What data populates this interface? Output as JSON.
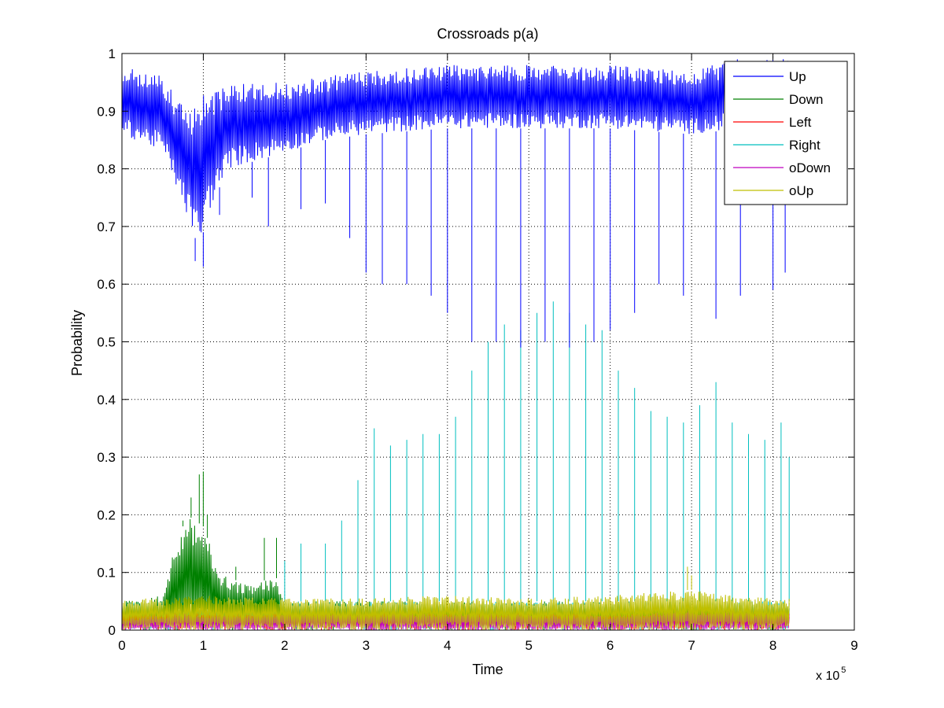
{
  "chart_data": {
    "type": "line",
    "title": "Crossroads p(a)",
    "xlabel": "Time",
    "ylabel": "Probability",
    "x_multiplier_label": "x 10",
    "x_multiplier_exponent": "5",
    "xlim": [
      0,
      9
    ],
    "ylim": [
      0,
      1
    ],
    "xticks": [
      "0",
      "1",
      "2",
      "3",
      "4",
      "5",
      "6",
      "7",
      "8",
      "9"
    ],
    "yticks": [
      "0",
      "0.1",
      "0.2",
      "0.3",
      "0.4",
      "0.5",
      "0.6",
      "0.7",
      "0.8",
      "0.9",
      "1"
    ],
    "grid": true,
    "legend_position": "top-right",
    "x_end": 8.2,
    "series": [
      {
        "name": "Up",
        "color": "#0000ff",
        "band_top": [
          [
            0.0,
            0.98
          ],
          [
            0.5,
            0.96
          ],
          [
            0.8,
            0.9
          ],
          [
            1.0,
            0.93
          ],
          [
            1.5,
            0.95
          ],
          [
            2.0,
            0.95
          ],
          [
            3.0,
            0.97
          ],
          [
            4.0,
            0.98
          ],
          [
            5.0,
            0.98
          ],
          [
            6.0,
            0.98
          ],
          [
            7.0,
            0.97
          ],
          [
            7.5,
            0.99
          ],
          [
            8.2,
            0.99
          ]
        ],
        "band_bottom": [
          [
            0.0,
            0.86
          ],
          [
            0.5,
            0.83
          ],
          [
            0.8,
            0.72
          ],
          [
            0.95,
            0.66
          ],
          [
            1.05,
            0.72
          ],
          [
            1.3,
            0.8
          ],
          [
            1.8,
            0.82
          ],
          [
            2.5,
            0.85
          ],
          [
            3.0,
            0.86
          ],
          [
            4.0,
            0.87
          ],
          [
            5.0,
            0.87
          ],
          [
            6.0,
            0.87
          ],
          [
            7.0,
            0.86
          ],
          [
            8.2,
            0.88
          ]
        ],
        "spikes": [
          [
            0.9,
            0.64
          ],
          [
            1.0,
            0.63
          ],
          [
            1.2,
            0.72
          ],
          [
            1.6,
            0.75
          ],
          [
            1.8,
            0.7
          ],
          [
            2.2,
            0.73
          ],
          [
            2.5,
            0.74
          ],
          [
            2.8,
            0.68
          ],
          [
            3.0,
            0.62
          ],
          [
            3.2,
            0.6
          ],
          [
            3.5,
            0.6
          ],
          [
            3.8,
            0.58
          ],
          [
            4.0,
            0.55
          ],
          [
            4.3,
            0.5
          ],
          [
            4.6,
            0.5
          ],
          [
            4.9,
            0.49
          ],
          [
            5.2,
            0.5
          ],
          [
            5.5,
            0.49
          ],
          [
            5.8,
            0.5
          ],
          [
            6.0,
            0.52
          ],
          [
            6.3,
            0.55
          ],
          [
            6.6,
            0.6
          ],
          [
            6.9,
            0.58
          ],
          [
            7.3,
            0.54
          ],
          [
            7.6,
            0.58
          ],
          [
            8.0,
            0.59
          ],
          [
            8.15,
            0.62
          ]
        ]
      },
      {
        "name": "Down",
        "color": "#008000",
        "band_top": [
          [
            0.0,
            0.05
          ],
          [
            0.5,
            0.06
          ],
          [
            0.6,
            0.12
          ],
          [
            0.8,
            0.2
          ],
          [
            1.0,
            0.18
          ],
          [
            1.2,
            0.1
          ],
          [
            1.5,
            0.08
          ],
          [
            1.9,
            0.09
          ],
          [
            2.0,
            0.05
          ],
          [
            8.2,
            0.05
          ]
        ],
        "band_bottom": [
          [
            0.0,
            0.0
          ],
          [
            8.2,
            0.0
          ]
        ],
        "spikes": [
          [
            0.75,
            0.19
          ],
          [
            0.85,
            0.23
          ],
          [
            0.95,
            0.27
          ],
          [
            1.0,
            0.275
          ],
          [
            1.05,
            0.2
          ],
          [
            1.15,
            0.12
          ],
          [
            1.4,
            0.11
          ],
          [
            1.75,
            0.16
          ],
          [
            1.9,
            0.16
          ]
        ]
      },
      {
        "name": "Left",
        "color": "#ff0000",
        "band_top": [
          [
            0.0,
            0.03
          ],
          [
            8.2,
            0.03
          ]
        ],
        "band_bottom": [
          [
            0.0,
            0.0
          ],
          [
            8.2,
            0.0
          ]
        ],
        "spikes": []
      },
      {
        "name": "Right",
        "color": "#00bfbf",
        "band_top": [
          [
            0.0,
            0.05
          ],
          [
            8.2,
            0.05
          ]
        ],
        "band_bottom": [
          [
            0.0,
            0.0
          ],
          [
            8.2,
            0.0
          ]
        ],
        "spikes": [
          [
            2.0,
            0.12
          ],
          [
            2.2,
            0.15
          ],
          [
            2.5,
            0.15
          ],
          [
            2.7,
            0.19
          ],
          [
            2.9,
            0.26
          ],
          [
            3.1,
            0.35
          ],
          [
            3.3,
            0.32
          ],
          [
            3.5,
            0.33
          ],
          [
            3.7,
            0.34
          ],
          [
            3.9,
            0.34
          ],
          [
            4.1,
            0.37
          ],
          [
            4.3,
            0.45
          ],
          [
            4.5,
            0.5
          ],
          [
            4.7,
            0.53
          ],
          [
            4.9,
            0.52
          ],
          [
            5.1,
            0.55
          ],
          [
            5.3,
            0.57
          ],
          [
            5.5,
            0.55
          ],
          [
            5.7,
            0.53
          ],
          [
            5.9,
            0.52
          ],
          [
            6.1,
            0.45
          ],
          [
            6.3,
            0.42
          ],
          [
            6.5,
            0.38
          ],
          [
            6.7,
            0.37
          ],
          [
            6.9,
            0.36
          ],
          [
            7.1,
            0.39
          ],
          [
            7.3,
            0.43
          ],
          [
            7.5,
            0.36
          ],
          [
            7.7,
            0.34
          ],
          [
            7.9,
            0.33
          ],
          [
            8.1,
            0.36
          ],
          [
            8.2,
            0.3
          ]
        ]
      },
      {
        "name": "oDown",
        "color": "#bf00bf",
        "band_top": [
          [
            0.0,
            0.02
          ],
          [
            0.8,
            0.03
          ],
          [
            1.0,
            0.025
          ],
          [
            2.0,
            0.03
          ],
          [
            4.0,
            0.03
          ],
          [
            6.0,
            0.025
          ],
          [
            7.0,
            0.035
          ],
          [
            8.2,
            0.03
          ]
        ],
        "band_bottom": [
          [
            0.0,
            0.0
          ],
          [
            8.2,
            0.0
          ]
        ],
        "spikes": []
      },
      {
        "name": "oUp",
        "color": "#bfbf00",
        "band_top": [
          [
            0.0,
            0.055
          ],
          [
            0.5,
            0.055
          ],
          [
            1.0,
            0.06
          ],
          [
            2.0,
            0.055
          ],
          [
            3.0,
            0.055
          ],
          [
            4.0,
            0.06
          ],
          [
            5.0,
            0.055
          ],
          [
            6.0,
            0.06
          ],
          [
            7.0,
            0.07
          ],
          [
            7.5,
            0.06
          ],
          [
            8.2,
            0.055
          ]
        ],
        "band_bottom": [
          [
            0.0,
            0.0
          ],
          [
            8.2,
            0.0
          ]
        ],
        "spikes": [
          [
            6.95,
            0.11
          ],
          [
            7.0,
            0.095
          ]
        ]
      }
    ]
  }
}
